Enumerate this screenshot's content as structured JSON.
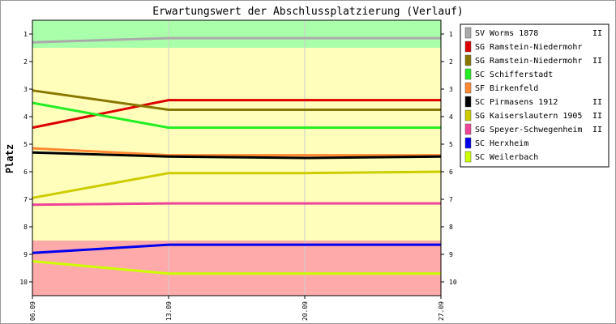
{
  "chart_data": {
    "type": "line",
    "title": "Erwartungswert der Abschlussplatzierung (Verlauf)",
    "xlabel": "",
    "ylabel": "Platz",
    "x": [
      "06.09",
      "13.09",
      "20.09",
      "27.09"
    ],
    "ylim": [
      0.5,
      10.5
    ],
    "y_inverted": true,
    "y_ticks": [
      1,
      2,
      3,
      4,
      5,
      6,
      7,
      8,
      9,
      10
    ],
    "bands": [
      {
        "from": 0.5,
        "to": 1.5,
        "color": "#aaffaa"
      },
      {
        "from": 1.5,
        "to": 8.5,
        "color": "#ffffbb"
      },
      {
        "from": 8.5,
        "to": 10.5,
        "color": "#ffaaaa"
      }
    ],
    "legend_position": "right",
    "series": [
      {
        "name": "SV Worms 1878",
        "suffix": "II",
        "color": "#aaaaaa",
        "values": [
          1.3,
          1.15,
          1.15,
          1.15
        ]
      },
      {
        "name": "SG Ramstein-Niedermohr",
        "suffix": "",
        "color": "#dd0000",
        "values": [
          4.4,
          3.4,
          3.4,
          3.4
        ]
      },
      {
        "name": "SG Ramstein-Niedermohr",
        "suffix": "II",
        "color": "#887700",
        "values": [
          3.05,
          3.75,
          3.75,
          3.75
        ]
      },
      {
        "name": "SC Schifferstadt",
        "suffix": "",
        "color": "#22ee22",
        "values": [
          3.5,
          4.4,
          4.4,
          4.4
        ]
      },
      {
        "name": "SF Birkenfeld",
        "suffix": "",
        "color": "#ff8833",
        "values": [
          5.15,
          5.4,
          5.4,
          5.4
        ]
      },
      {
        "name": "SC Pirmasens 1912",
        "suffix": "II",
        "color": "#000000",
        "values": [
          5.3,
          5.45,
          5.5,
          5.45
        ]
      },
      {
        "name": "SG Kaiserslautern 1905",
        "suffix": "II",
        "color": "#cccc00",
        "values": [
          6.95,
          6.05,
          6.05,
          6.0
        ]
      },
      {
        "name": "SG Speyer-Schwegenheim",
        "suffix": "II",
        "color": "#ee4499",
        "values": [
          7.2,
          7.15,
          7.15,
          7.15
        ]
      },
      {
        "name": "SC Herxheim",
        "suffix": "",
        "color": "#0000ee",
        "values": [
          8.95,
          8.65,
          8.65,
          8.65
        ]
      },
      {
        "name": "SC Weilerbach",
        "suffix": "",
        "color": "#ccff00",
        "values": [
          9.25,
          9.7,
          9.7,
          9.7
        ]
      }
    ]
  }
}
